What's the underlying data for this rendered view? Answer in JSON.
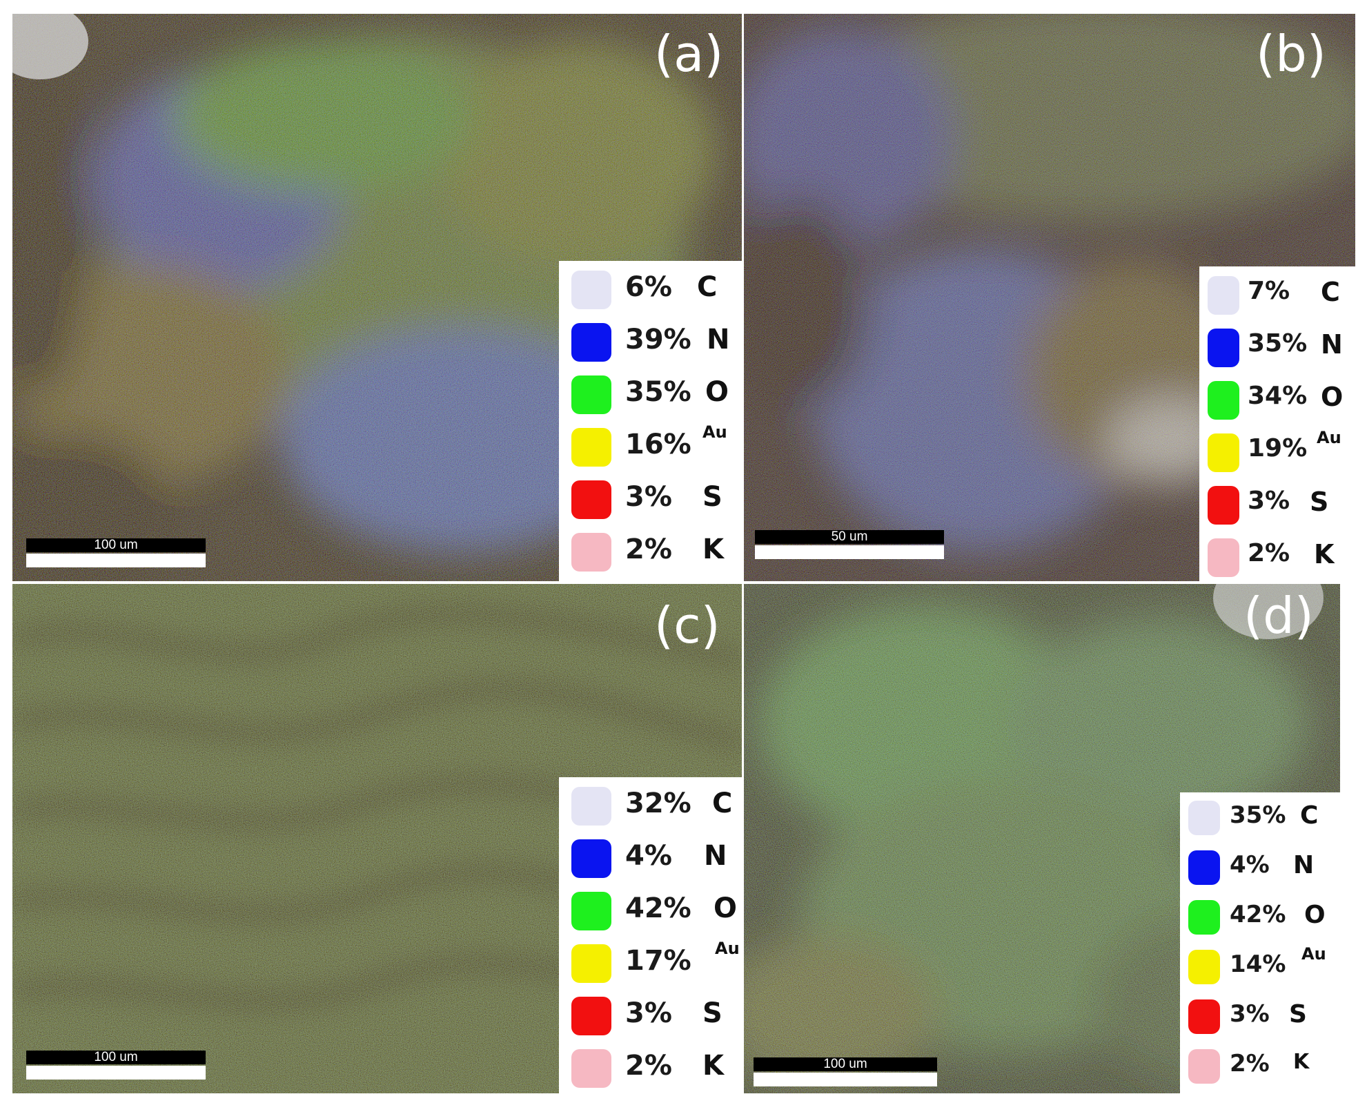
{
  "colors": {
    "C": "#e4e4f4",
    "N": "#0a14f0",
    "O": "#1ef01e",
    "Au": "#f5f000",
    "S": "#f21010",
    "K": "#f6b8c2"
  },
  "panels": [
    {
      "label": "(a)",
      "scale_bar": "100 um",
      "legend": [
        {
          "pct": "6%",
          "element": "C"
        },
        {
          "pct": "39%",
          "element": "N"
        },
        {
          "pct": "35%",
          "element": "O"
        },
        {
          "pct": "16%",
          "element": "Au"
        },
        {
          "pct": "3%",
          "element": "S"
        },
        {
          "pct": "2%",
          "element": "K"
        }
      ]
    },
    {
      "label": "(b)",
      "scale_bar": "50 um",
      "legend": [
        {
          "pct": "7%",
          "element": "C"
        },
        {
          "pct": "35%",
          "element": "N"
        },
        {
          "pct": "34%",
          "element": "O"
        },
        {
          "pct": "19%",
          "element": "Au"
        },
        {
          "pct": "3%",
          "element": "S"
        },
        {
          "pct": "2%",
          "element": "K"
        }
      ]
    },
    {
      "label": "(c)",
      "scale_bar": "100 um",
      "legend": [
        {
          "pct": "32%",
          "element": "C"
        },
        {
          "pct": "4%",
          "element": "N"
        },
        {
          "pct": "42%",
          "element": "O"
        },
        {
          "pct": "17%",
          "element": "Au"
        },
        {
          "pct": "3%",
          "element": "S"
        },
        {
          "pct": "2%",
          "element": "K"
        }
      ]
    },
    {
      "label": "(d)",
      "scale_bar": "100 um",
      "legend": [
        {
          "pct": "35%",
          "element": "C"
        },
        {
          "pct": "4%",
          "element": "N"
        },
        {
          "pct": "42%",
          "element": "O"
        },
        {
          "pct": "14%",
          "element": "Au"
        },
        {
          "pct": "3%",
          "element": "S"
        },
        {
          "pct": "2%",
          "element": "K"
        }
      ]
    }
  ]
}
